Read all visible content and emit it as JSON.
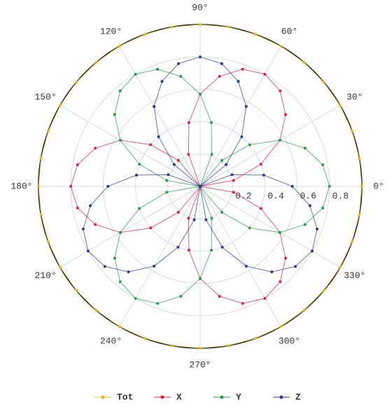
{
  "chart_data": {
    "type": "polar",
    "theta": [
      0,
      10,
      20,
      30,
      40,
      50,
      60,
      70,
      80,
      90,
      100,
      110,
      120,
      130,
      140,
      150,
      160,
      170,
      180,
      190,
      200,
      210,
      220,
      230,
      240,
      250,
      260,
      270,
      280,
      290,
      300,
      310,
      320,
      330,
      340,
      350
    ],
    "rlim": [
      0,
      1
    ],
    "rticks": [
      0.2,
      0.4,
      0.6,
      0.8
    ],
    "thetaticks": [
      {
        "value": 0,
        "label": "0°"
      },
      {
        "value": 30,
        "label": "30°"
      },
      {
        "value": 60,
        "label": "60°"
      },
      {
        "value": 90,
        "label": "90°"
      },
      {
        "value": 120,
        "label": "120°"
      },
      {
        "value": 150,
        "label": "150°"
      },
      {
        "value": 180,
        "label": "180°"
      },
      {
        "value": 210,
        "label": "210°"
      },
      {
        "value": 240,
        "label": "240°"
      },
      {
        "value": 270,
        "label": "270°"
      },
      {
        "value": 300,
        "label": "300°"
      },
      {
        "value": 330,
        "label": "330°"
      }
    ],
    "grid": true,
    "legend": "bottom",
    "series": [
      {
        "name": "Tot",
        "color": "#e6b820",
        "values": [
          1,
          1,
          1,
          1,
          1,
          1,
          1,
          1,
          1,
          1,
          1,
          1,
          1,
          1,
          1,
          1,
          1,
          1,
          1,
          1,
          1,
          1,
          1,
          1,
          1,
          1,
          1,
          1,
          1,
          1,
          1,
          1,
          1,
          1,
          1,
          1
        ]
      },
      {
        "name": "X",
        "color": "#e0203c",
        "values": [
          0,
          0.21,
          0.4,
          0.57,
          0.69,
          0.77,
          0.8,
          0.77,
          0.69,
          0.57,
          0.4,
          0.21,
          0,
          0.21,
          0.4,
          0.57,
          0.69,
          0.77,
          0.8,
          0.77,
          0.69,
          0.57,
          0.4,
          0.21,
          0,
          0.21,
          0.4,
          0.57,
          0.69,
          0.77,
          0.8,
          0.77,
          0.69,
          0.57,
          0.4,
          0.21
        ]
      },
      {
        "name": "Y",
        "color": "#2a9a50",
        "values": [
          0.8,
          0.77,
          0.69,
          0.57,
          0.4,
          0.21,
          0,
          0.21,
          0.4,
          0.57,
          0.69,
          0.77,
          0.8,
          0.77,
          0.69,
          0.57,
          0.4,
          0.21,
          0,
          0.21,
          0.4,
          0.57,
          0.69,
          0.77,
          0.8,
          0.77,
          0.69,
          0.57,
          0.4,
          0.21,
          0,
          0.21,
          0.4,
          0.57,
          0.69,
          0.77
        ]
      },
      {
        "name": "Z",
        "color": "#2c3890",
        "values": [
          0.57,
          0.4,
          0.21,
          0,
          0.21,
          0.4,
          0.57,
          0.69,
          0.77,
          0.8,
          0.77,
          0.69,
          0.57,
          0.4,
          0.21,
          0,
          0.21,
          0.4,
          0.57,
          0.69,
          0.77,
          0.8,
          0.77,
          0.69,
          0.57,
          0.4,
          0.21,
          0,
          0.21,
          0.4,
          0.57,
          0.69,
          0.77,
          0.8,
          0.77,
          0.69
        ]
      }
    ]
  }
}
